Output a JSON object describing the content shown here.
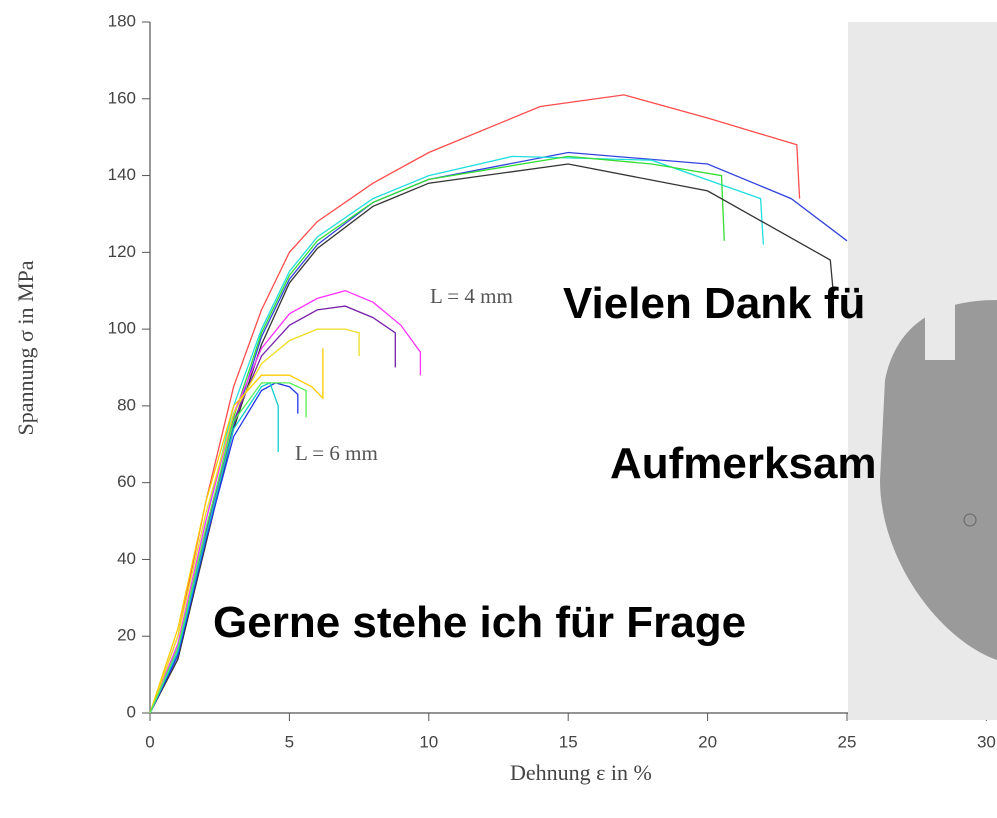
{
  "chart_data": {
    "type": "line",
    "y_label": "Spannung σ in MPa",
    "x_label": "Dehnung ε in %",
    "annotations": [
      "L = 4 mm",
      "L = 6 mm"
    ],
    "overlay_texts": [
      "Vielen Dank fü",
      "Aufmerksam",
      "Gerne stehe ich für Frage"
    ],
    "xlim": [
      0,
      30.4
    ],
    "xticks": [
      0,
      5,
      10,
      15,
      20,
      25,
      30
    ],
    "ylim": [
      0,
      180
    ],
    "yticks": [
      0,
      20,
      40,
      60,
      80,
      100,
      120,
      140,
      160,
      180
    ],
    "series": [
      {
        "color": "#ff4d4d",
        "x": [
          0,
          1,
          2,
          3,
          4,
          5,
          6,
          8,
          10,
          14,
          17,
          20,
          23.2,
          23.3
        ],
        "values": [
          0,
          20,
          55,
          85,
          105,
          120,
          128,
          138,
          146,
          158,
          161,
          155,
          148,
          134
        ]
      },
      {
        "color": "#3344dd",
        "x": [
          0,
          1,
          2,
          3,
          4,
          5,
          6,
          8,
          10,
          15,
          20,
          23,
          25
        ],
        "values": [
          0,
          15,
          45,
          75,
          98,
          113,
          122,
          133,
          139,
          146,
          143,
          134,
          123
        ]
      },
      {
        "color": "#22dddd",
        "x": [
          0,
          1,
          2,
          3,
          4,
          5,
          6,
          8,
          10,
          13,
          18,
          21.9,
          22
        ],
        "values": [
          0,
          18,
          50,
          80,
          100,
          115,
          124,
          134,
          140,
          145,
          144,
          134,
          122
        ]
      },
      {
        "color": "#33dd33",
        "x": [
          0,
          1,
          2,
          3,
          4,
          5,
          6,
          8,
          10,
          15,
          18,
          20.5,
          20.6
        ],
        "values": [
          0,
          16,
          47,
          77,
          99,
          114,
          123,
          133,
          139,
          145,
          143,
          140,
          123
        ]
      },
      {
        "color": "#333333",
        "x": [
          0,
          1,
          2,
          3,
          4,
          5,
          6,
          8,
          10,
          15,
          20,
          24.4,
          24.5
        ],
        "values": [
          0,
          14,
          44,
          74,
          96,
          112,
          121,
          132,
          138,
          143,
          136,
          118,
          110
        ]
      },
      {
        "color": "#ff33ff",
        "x": [
          0,
          1,
          2,
          3,
          4,
          5,
          6,
          7,
          8,
          9,
          9.7,
          9.7
        ],
        "values": [
          0,
          18,
          50,
          78,
          95,
          104,
          108,
          110,
          107,
          101,
          94,
          88
        ]
      },
      {
        "color": "#7722aa",
        "x": [
          0,
          1,
          2,
          3,
          4,
          5,
          6,
          7,
          8,
          8.8,
          8.8
        ],
        "values": [
          0,
          16,
          47,
          76,
          93,
          101,
          105,
          106,
          103,
          99,
          90
        ]
      },
      {
        "color": "#eedd22",
        "x": [
          0,
          1,
          2,
          3,
          4,
          5,
          6,
          7,
          7.5,
          7.5
        ],
        "values": [
          0,
          20,
          52,
          78,
          91,
          97,
          100,
          100,
          99,
          93
        ]
      },
      {
        "color": "#2233ee",
        "x": [
          0,
          1,
          2,
          3,
          4,
          4.5,
          5,
          5.3,
          5.3
        ],
        "values": [
          0,
          15,
          45,
          72,
          84,
          86,
          85,
          83,
          78
        ]
      },
      {
        "color": "#11cccc",
        "x": [
          0,
          1,
          2,
          3,
          4,
          4.3,
          4.6,
          4.6
        ],
        "values": [
          0,
          16,
          46,
          74,
          85,
          86,
          80,
          68
        ]
      },
      {
        "color": "#ffcc00",
        "x": [
          0,
          1,
          2,
          3,
          4,
          5,
          5.8,
          6.2,
          6.2
        ],
        "values": [
          0,
          22,
          55,
          80,
          88,
          88,
          85,
          82,
          95
        ]
      },
      {
        "color": "#55ee55",
        "x": [
          0,
          1,
          2,
          3,
          4,
          5,
          5.6,
          5.6
        ],
        "values": [
          0,
          17,
          48,
          76,
          86,
          86,
          84,
          77
        ]
      }
    ]
  }
}
